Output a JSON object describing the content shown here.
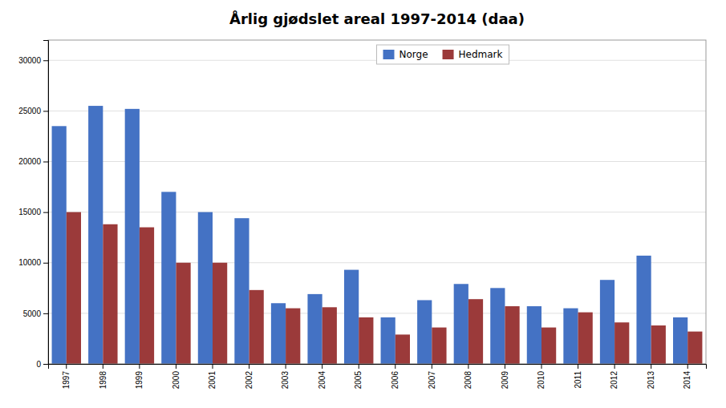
{
  "chart_data": {
    "type": "bar",
    "title": "Årlig gjødslet areal 1997-2014 (daa)",
    "categories": [
      "1997",
      "1998",
      "1999",
      "2000",
      "2001",
      "2002",
      "2003",
      "2004",
      "2005",
      "2006",
      "2007",
      "2008",
      "2009",
      "2010",
      "2011",
      "2012",
      "2013",
      "2014"
    ],
    "series": [
      {
        "name": "Norge",
        "color": "#4472C4",
        "values": [
          23500,
          25500,
          25200,
          17000,
          15000,
          14400,
          6000,
          6900,
          9300,
          4600,
          6300,
          7900,
          7500,
          5700,
          5500,
          8300,
          10700,
          4600
        ]
      },
      {
        "name": "Hedmark",
        "color": "#9B3A3A",
        "values": [
          15000,
          13800,
          13500,
          10000,
          10000,
          7300,
          5500,
          5600,
          4600,
          2900,
          3600,
          6400,
          5700,
          3600,
          5100,
          4100,
          3800,
          3200
        ]
      }
    ],
    "ylim": [
      0,
      32000
    ],
    "yticks": [
      0,
      5000,
      10000,
      15000,
      20000,
      25000,
      30000
    ],
    "grid": true,
    "legend": "top"
  }
}
